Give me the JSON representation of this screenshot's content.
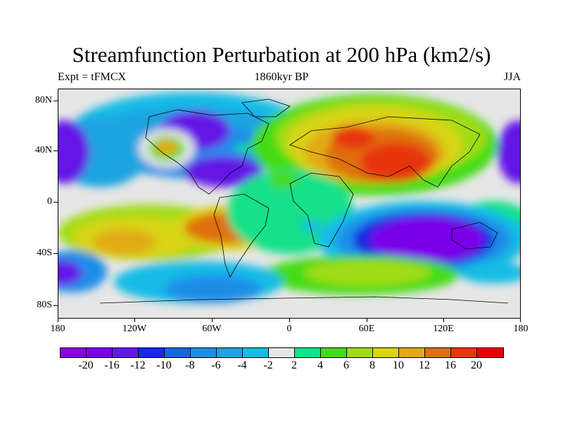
{
  "title": "Streamfunction Perturbation at 200 hPa (km2/s)",
  "subtitle": {
    "left": "Expt = tFMCX",
    "center": "1860kyr BP",
    "right": "JJA"
  },
  "axes": {
    "y_ticks": [
      "80N",
      "40N",
      "0",
      "40S",
      "80S"
    ],
    "x_ticks": [
      "180",
      "120W",
      "60W",
      "0",
      "60E",
      "120E",
      "180"
    ]
  },
  "colorbar": {
    "colors": [
      "#8b00e8",
      "#7a00ea",
      "#6418e6",
      "#1a28e0",
      "#1466e6",
      "#1c8ee8",
      "#1aa4e0",
      "#14bce6",
      "#e6e6e6",
      "#14e08a",
      "#44dc14",
      "#a0dc14",
      "#d8d414",
      "#e2aa14",
      "#e0700e",
      "#e6360e",
      "#e60006"
    ],
    "labels": [
      "-20",
      "-16",
      "-12",
      "-10",
      "-8",
      "-6",
      "-4",
      "-2",
      "2",
      "4",
      "6",
      "8",
      "10",
      "12",
      "16",
      "20"
    ]
  }
}
